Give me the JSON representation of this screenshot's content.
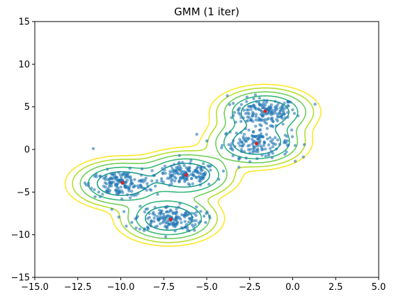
{
  "chart_data": {
    "type": "scatter",
    "title": "GMM (1 iter)",
    "xlabel": "",
    "ylabel": "",
    "xlim": [
      -15,
      5
    ],
    "ylim": [
      -15,
      15
    ],
    "x_ticks": [
      -15.0,
      -12.5,
      -10.0,
      -7.5,
      -5.0,
      -2.5,
      0.0,
      2.5,
      5.0
    ],
    "x_tick_labels": [
      "−15.0",
      "−12.5",
      "−10.0",
      "−7.5",
      "−5.0",
      "−2.5",
      "0.0",
      "2.5",
      "5.0"
    ],
    "y_ticks": [
      -15,
      -10,
      -5,
      0,
      5,
      10,
      15
    ],
    "y_tick_labels": [
      "−15",
      "−10",
      "−5",
      "0",
      "5",
      "10",
      "15"
    ],
    "grid": false,
    "legend": "none",
    "point_color": "#1f77b4",
    "mean_color": "#d62728",
    "contour_colors": [
      "#1f9e89",
      "#35b779",
      "#6ece58",
      "#b5de2b",
      "#fde725"
    ],
    "clusters": [
      {
        "mean": [
          -1.6,
          4.4
        ],
        "std": [
          0.9,
          0.8
        ],
        "n": 170
      },
      {
        "mean": [
          -2.1,
          0.8
        ],
        "std": [
          1.0,
          0.85
        ],
        "n": 150
      },
      {
        "mean": [
          -6.2,
          -3.0
        ],
        "std": [
          0.9,
          0.7
        ],
        "n": 150
      },
      {
        "mean": [
          -10.0,
          -4.0
        ],
        "std": [
          0.9,
          0.75
        ],
        "n": 170
      },
      {
        "mean": [
          -7.2,
          -8.1
        ],
        "std": [
          1.0,
          0.75
        ],
        "n": 170
      }
    ],
    "means": [
      {
        "x": -1.6,
        "y": 4.5
      },
      {
        "x": -2.1,
        "y": 0.7
      },
      {
        "x": -6.2,
        "y": -3.0
      },
      {
        "x": -9.9,
        "y": -3.9
      },
      {
        "x": -7.1,
        "y": -8.2
      }
    ],
    "outliers": [
      {
        "x": -11.6,
        "y": 0.1
      },
      {
        "x": 1.3,
        "y": 5.3
      },
      {
        "x": -3.8,
        "y": 6.3
      },
      {
        "x": -4.3,
        "y": -3.5
      }
    ]
  }
}
